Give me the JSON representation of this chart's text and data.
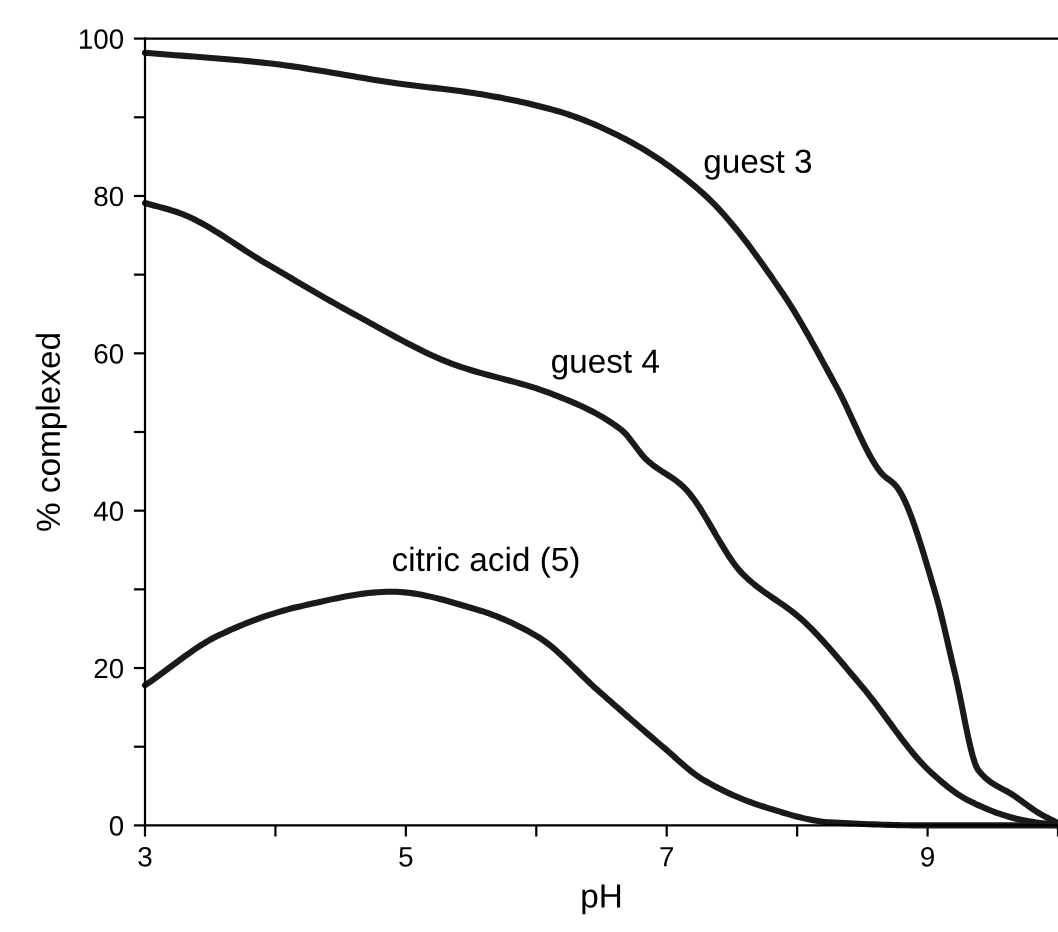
{
  "chart_data": {
    "type": "line",
    "xlabel": "pH",
    "ylabel": "% complexed",
    "xlim": [
      3,
      10
    ],
    "ylim": [
      0,
      100
    ],
    "xticks": [
      3,
      {
        "value": 4,
        "label": null
      },
      5,
      {
        "value": 6,
        "label": null
      },
      7,
      {
        "value": 8,
        "label": null
      },
      9,
      {
        "value": 10,
        "label": null
      }
    ],
    "yticks": [
      0,
      {
        "value": 10,
        "label": null
      },
      20,
      {
        "value": 30,
        "label": null
      },
      40,
      {
        "value": 50,
        "label": null
      },
      60,
      {
        "value": 70,
        "label": null
      },
      80,
      {
        "value": 90,
        "label": null
      },
      100
    ],
    "grid": false,
    "marker": "none",
    "line_style": "solid",
    "series": [
      {
        "color": "#1a1a1a",
        "x": [
          3,
          3.93,
          4.94,
          5.55,
          6.16,
          6.65,
          7.28,
          7.89,
          8.3,
          8.65,
          8.76,
          9.06,
          9.21,
          9.39,
          9.67,
          9.86,
          10
        ],
        "values": [
          98.2,
          96.9,
          94.3,
          93.0,
          90.8,
          87.5,
          80.3,
          67.6,
          55.8,
          44.7,
          43.1,
          29.5,
          19.3,
          7.0,
          3.7,
          1.5,
          0.3
        ]
      },
      {
        "color": "#1a1a1a",
        "x": [
          3,
          3.27,
          3.93,
          4.59,
          5.35,
          6.11,
          6.65,
          6.85,
          7.13,
          7.58,
          8.04,
          8.5,
          9.01,
          9.31,
          9.72,
          10
        ],
        "values": [
          79.1,
          77.8,
          71.4,
          65.1,
          58.7,
          54.9,
          50.3,
          46.4,
          43.0,
          32.0,
          26.1,
          17.6,
          7.0,
          3.2,
          0.7,
          0
        ]
      },
      {
        "color": "#1a1a1a",
        "x": [
          3,
          3.57,
          4.18,
          4.89,
          5.55,
          6.01,
          6.47,
          6.97,
          7.28,
          7.74,
          8.25,
          9.0,
          10
        ],
        "values": [
          17.8,
          24.2,
          27.8,
          29.7,
          27.4,
          24.0,
          17.2,
          10.0,
          5.8,
          2.4,
          0.4,
          0,
          0
        ]
      }
    ],
    "annotations": [
      {
        "text": "guest 3",
        "x": 7.28,
        "y": 80.3
      },
      {
        "text": "guest 4",
        "x": 6.11,
        "y": 54.9
      },
      {
        "text": "citric acid (5)",
        "x": 4.89,
        "y": 29.7
      }
    ]
  }
}
